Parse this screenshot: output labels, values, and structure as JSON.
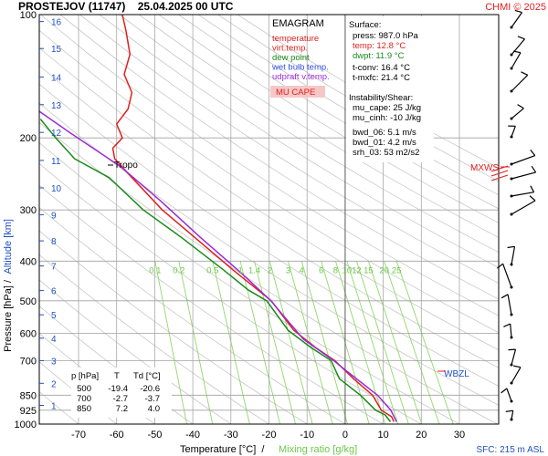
{
  "header": {
    "title": "PROSTEJOV (11747)    25.04.2025 00 UTC",
    "credit": "CHMI © 2025"
  },
  "legend": {
    "title": "EMAGRAM",
    "items": [
      {
        "label": "temperature",
        "color": "#e02020"
      },
      {
        "label": "virt.temp.",
        "color": "#e02020"
      },
      {
        "label": "dew point",
        "color": "#1a8a1a"
      },
      {
        "label": "wet bulb temp.",
        "color": "#3050e0"
      },
      {
        "label": "udpraft v.temp.",
        "color": "#9a2bd6"
      }
    ],
    "mucape_label": "MU CAPE"
  },
  "stats": {
    "surface_title": "Surface:",
    "surface_lines": [
      "press: 987.0 hPa",
      "temp: 12.8 °C",
      "dwpt: 11.9 °C"
    ],
    "surface_colors": [
      "#000000",
      "#e02020",
      "#1a8a1a"
    ],
    "conv_lines": [
      "t-conv: 16.4 °C",
      "t-mxfc: 21.4 °C"
    ],
    "instab_title": "Instability/Shear:",
    "instab_lines": [
      "mu_cape: 25 J/kg",
      "mu_cinh: -10 J/kg",
      "bwd_06: 5.1 m/s",
      "bwd_01: 4.2 m/s",
      "srh_03: 53 m2/s2"
    ]
  },
  "table": {
    "headers": [
      "p [hPa]",
      "T",
      "Td [°C]"
    ],
    "rows": [
      [
        "500",
        "-19.4",
        "-20.6"
      ],
      [
        "700",
        "-2.7",
        "-3.7"
      ],
      [
        "850",
        "7.2",
        "4.0"
      ]
    ]
  },
  "footer": {
    "sfc": "SFC: 215 m ASL",
    "xlabel_main": "Temperature [°C]  /",
    "xlabel_mix": "Mixing ratio [g/kg]",
    "ylabel_main": "Pressure [hPa]  /",
    "ylabel_alt": "Altitude [km]"
  },
  "annotations": {
    "tropo": "Tropo",
    "mxws": "MXWS",
    "wbzl": "WBZL"
  },
  "chart_data": {
    "type": "line",
    "title": "PROSTEJOV (11747)    25.04.2025 00 UTC",
    "xlabel": "Temperature [°C]",
    "ylabel": "Pressure [hPa]",
    "y_scale": "log",
    "xlim": [
      -80,
      40
    ],
    "ylim": [
      1000,
      100
    ],
    "x_ticks": [
      -70,
      -60,
      -50,
      -40,
      -30,
      -20,
      -10,
      0,
      10,
      20,
      30
    ],
    "y_ticks": [
      100,
      200,
      300,
      400,
      500,
      600,
      700,
      850,
      925,
      1000
    ],
    "altitude_km": [
      {
        "km": 1,
        "p": 900
      },
      {
        "km": 2,
        "p": 795
      },
      {
        "km": 3,
        "p": 700
      },
      {
        "km": 4,
        "p": 617
      },
      {
        "km": 5,
        "p": 541
      },
      {
        "km": 6,
        "p": 472
      },
      {
        "km": 7,
        "p": 411
      },
      {
        "km": 8,
        "p": 357
      },
      {
        "km": 9,
        "p": 308
      },
      {
        "km": 10,
        "p": 265
      },
      {
        "km": 11,
        "p": 227
      },
      {
        "km": 12,
        "p": 194
      },
      {
        "km": 13,
        "p": 166
      },
      {
        "km": 14,
        "p": 142
      },
      {
        "km": 15,
        "p": 121
      },
      {
        "km": 16,
        "p": 104
      }
    ],
    "mixing_ratio_labels": [
      "0.1",
      "0.2",
      "0.5",
      "1",
      "1.4",
      "2",
      "3",
      "4",
      "6",
      "8",
      "10",
      "12",
      "15",
      "20",
      "25"
    ],
    "series": [
      {
        "name": "temperature",
        "color": "#e02020",
        "points": [
          [
            12.8,
            987
          ],
          [
            12.2,
            960
          ],
          [
            9.5,
            925
          ],
          [
            7.2,
            850
          ],
          [
            2.2,
            775
          ],
          [
            -2.7,
            700
          ],
          [
            -7.8,
            650
          ],
          [
            -13.5,
            590
          ],
          [
            -19.4,
            500
          ],
          [
            -29.5,
            420
          ],
          [
            -39.5,
            350
          ],
          [
            -48,
            300
          ],
          [
            -56,
            250
          ],
          [
            -60.5,
            225
          ],
          [
            -61,
            212
          ],
          [
            -58.5,
            200
          ],
          [
            -60,
            185
          ],
          [
            -57,
            170
          ],
          [
            -56,
            155
          ],
          [
            -58,
            140
          ],
          [
            -56.5,
            125
          ],
          [
            -57.5,
            110
          ],
          [
            -58.5,
            100
          ]
        ]
      },
      {
        "name": "dew point",
        "color": "#1a8a1a",
        "points": [
          [
            11.9,
            987
          ],
          [
            10.5,
            950
          ],
          [
            8,
            925
          ],
          [
            4,
            850
          ],
          [
            -1.5,
            775
          ],
          [
            -3.7,
            700
          ],
          [
            -9,
            650
          ],
          [
            -15,
            590
          ],
          [
            -20.6,
            500
          ],
          [
            -25.5,
            470
          ],
          [
            -32,
            420
          ],
          [
            -43,
            350
          ],
          [
            -53,
            300
          ],
          [
            -62,
            250
          ],
          [
            -71,
            225
          ],
          [
            -76,
            200
          ],
          [
            -80,
            180
          ]
        ]
      },
      {
        "name": "udpraft v.temp.",
        "color": "#9a2bd6",
        "points": [
          [
            13.5,
            987
          ],
          [
            12,
            925
          ],
          [
            8.5,
            850
          ],
          [
            1,
            750
          ],
          [
            -3,
            700
          ],
          [
            -11,
            620
          ],
          [
            -19.5,
            500
          ],
          [
            -27,
            430
          ],
          [
            -38,
            350
          ],
          [
            -48.5,
            285
          ],
          [
            -59,
            235
          ],
          [
            -72,
            195
          ],
          [
            -82,
            168
          ]
        ]
      }
    ]
  }
}
